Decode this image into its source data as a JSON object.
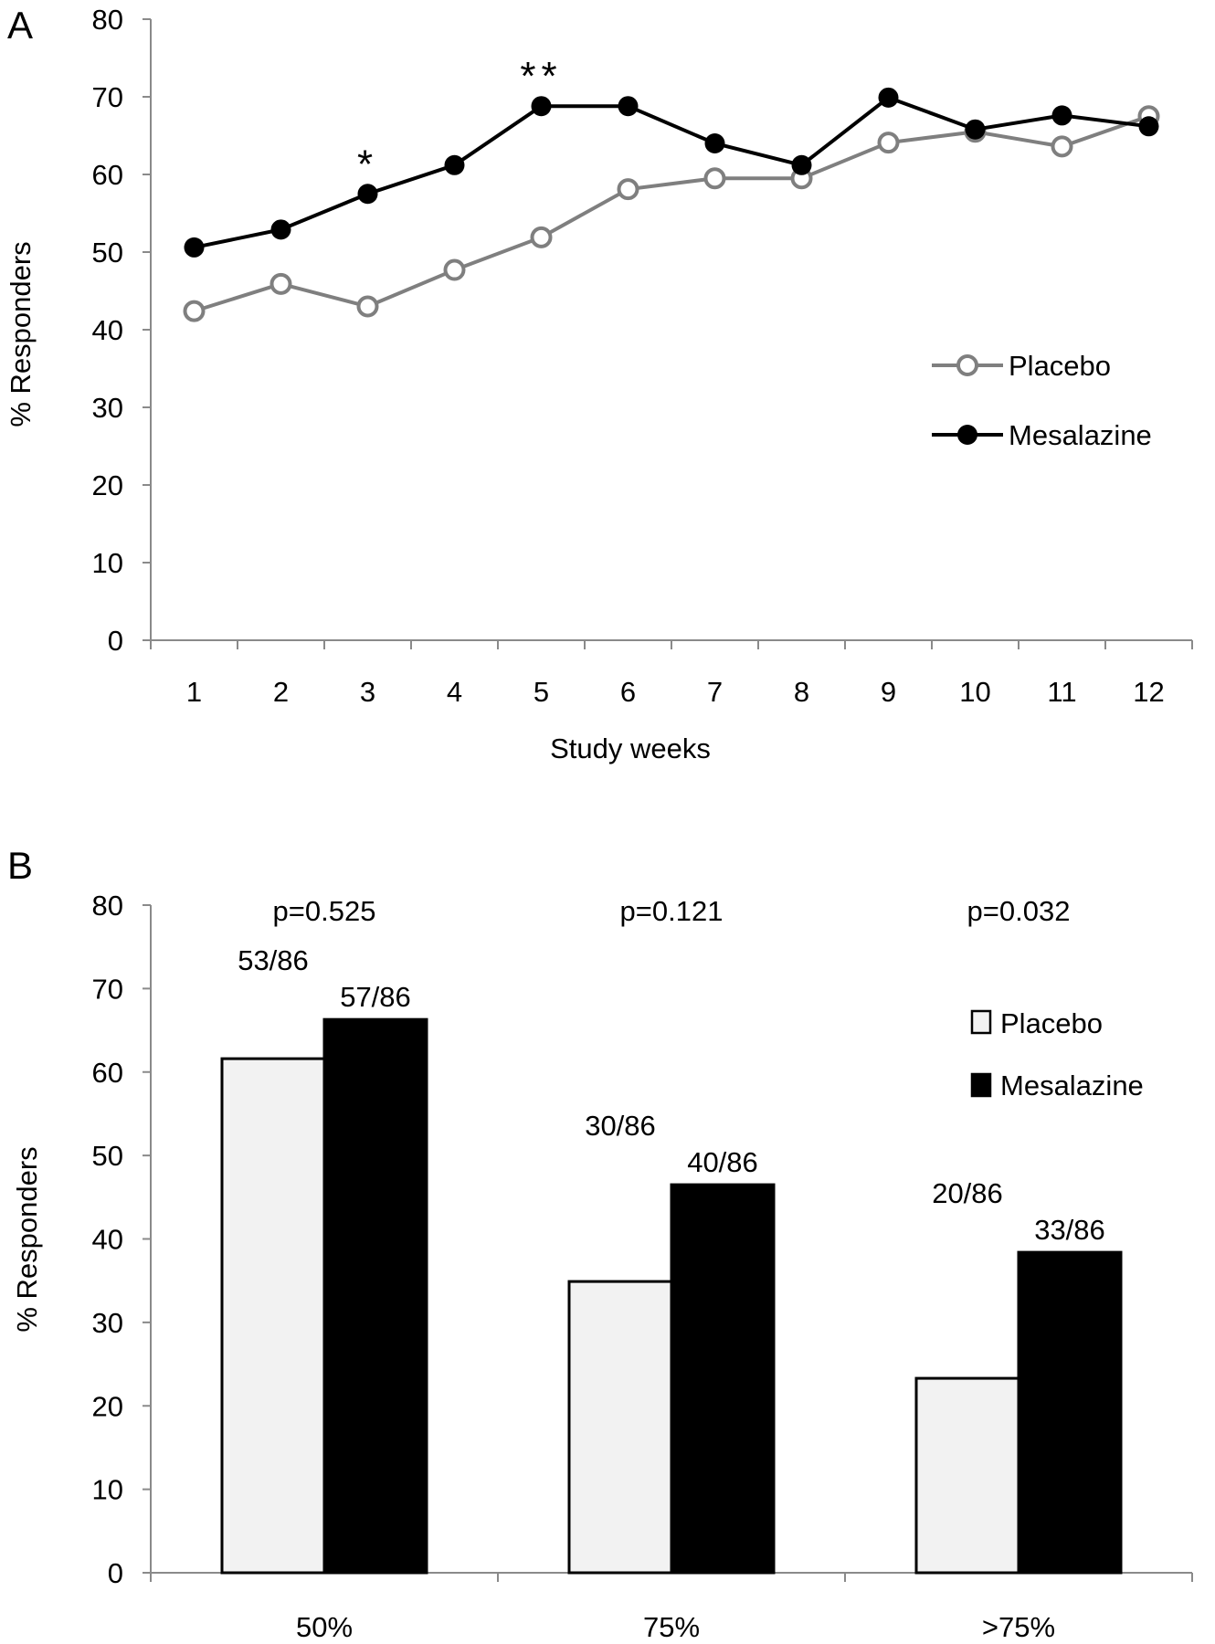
{
  "chart_data": [
    {
      "panel_label": "A",
      "type": "line",
      "xlabel": "Study weeks",
      "ylabel": "% Responders",
      "ylim": [
        0,
        80
      ],
      "yticks": [
        0,
        10,
        20,
        30,
        40,
        50,
        60,
        70,
        80
      ],
      "x": [
        "1",
        "2",
        "3",
        "4",
        "5",
        "6",
        "7",
        "8",
        "9",
        "10",
        "11",
        "12"
      ],
      "series": [
        {
          "name": "Placebo",
          "color": "#7f7f7f",
          "marker": "open-circle",
          "values": [
            42.4,
            45.9,
            43.0,
            47.7,
            51.9,
            58.1,
            59.5,
            59.5,
            64.1,
            65.5,
            63.6,
            67.5
          ]
        },
        {
          "name": "Mesalazine",
          "color": "#000000",
          "marker": "filled-circle",
          "values": [
            50.6,
            52.9,
            57.5,
            61.2,
            68.8,
            68.8,
            64.0,
            61.2,
            69.9,
            65.8,
            67.6,
            66.2
          ]
        }
      ],
      "annotations": [
        {
          "text": "*",
          "x": "3"
        },
        {
          "text": "**",
          "x": "5"
        }
      ],
      "legend": "right",
      "grid": false
    },
    {
      "panel_label": "B",
      "type": "bar",
      "ylabel": "% Responders",
      "ylim": [
        0,
        80
      ],
      "yticks": [
        0,
        10,
        20,
        30,
        40,
        50,
        60,
        70,
        80
      ],
      "categories": [
        "50%",
        "75%",
        ">75%"
      ],
      "series": [
        {
          "name": "Placebo",
          "color": "#f2f2f2",
          "values": [
            61.6,
            34.9,
            23.3
          ],
          "labels": [
            "53/86",
            "30/86",
            "20/86"
          ]
        },
        {
          "name": "Mesalazine",
          "color": "#000000",
          "values": [
            66.3,
            46.5,
            38.4
          ],
          "labels": [
            "57/86",
            "40/86",
            "33/86"
          ]
        }
      ],
      "p_values": [
        "p=0.525",
        "p=0.121",
        "p=0.032"
      ],
      "legend": "top-right",
      "grid": false
    }
  ]
}
